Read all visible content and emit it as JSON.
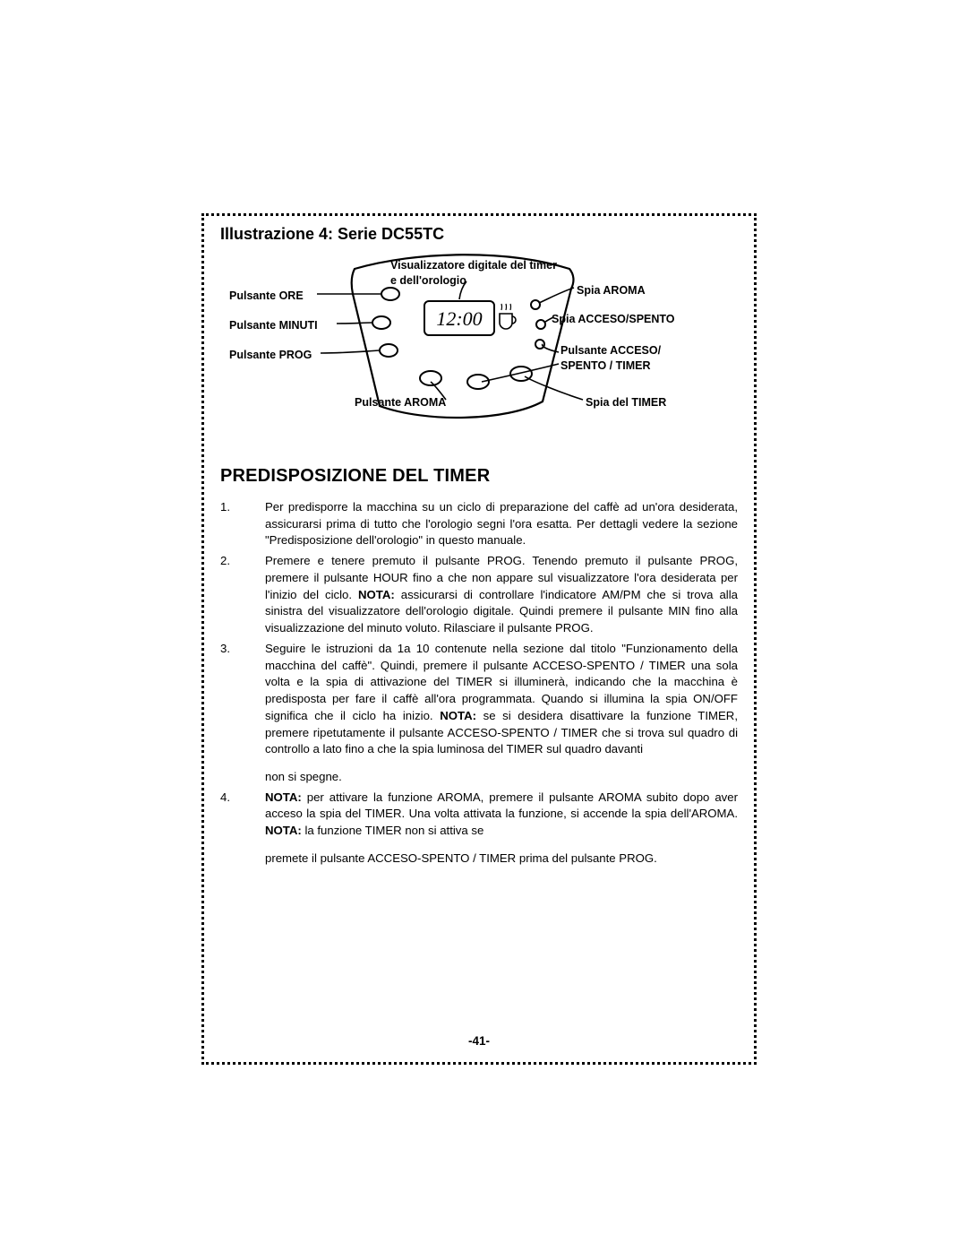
{
  "figure": {
    "title": "Illustrazione 4: Serie DC55TC",
    "labels": {
      "topCenter": "Visualizzatore digitale del timer\ne dell'orologio",
      "leftOre": "Pulsante ORE",
      "leftMinuti": "Pulsante MINUTI",
      "leftProg": "Pulsante PROG",
      "bottomAroma": "Pulsante AROMA",
      "rightSpiaAroma": "Spia AROMA",
      "rightSpiaAcceso": "Spia ACCESO/SPENTO",
      "rightPulsanteAcceso": "Pulsante ACCESO/\nSPENTO / TIMER",
      "rightSpiaTimer": "Spia del TIMER"
    },
    "display_text": "12:00",
    "colors": {
      "stroke": "#000000",
      "fill_none": "none",
      "bg": "#ffffff"
    }
  },
  "section_heading": "PREDISPOSIZIONE DEL TIMER",
  "steps": [
    {
      "n": "1.",
      "text": "Per predisporre la macchina su un ciclo di preparazione del caffè ad un'ora desiderata, assicurarsi prima di tutto che l'orologio segni l'ora esatta. Per dettagli vedere la sezione \"Predisposizione dell'orologio\" in questo manuale."
    },
    {
      "n": "2.",
      "text_parts": [
        {
          "t": "Premere e tenere premuto il pulsante PROG. Tenendo premuto il pulsante PROG, premere il pulsante HOUR fino a che non appare sul visualizzatore l'ora desiderata per l'inizio del ciclo.\n"
        },
        {
          "b": "NOTA:"
        },
        {
          "t": " assicurarsi di controllare l'indicatore AM/PM che si trova alla sinistra del visualizzatore dell'orologio digitale. Quindi premere il pulsante MIN fino alla visualizzazione del minuto voluto. Rilasciare il pulsante PROG."
        }
      ]
    },
    {
      "n": "3.",
      "text_parts": [
        {
          "t": "Seguire le istruzioni da 1a 10 contenute nella sezione dal titolo \"Funzionamento della macchina del caffè\". Quindi, premere il pulsante ACCESO-SPENTO / TIMER una sola volta e la spia di attivazione del TIMER si illuminerà, indicando che la macchina è predisposta per fare il caffè all'ora programmata. Quando si illumina la spia ON/OFF significa che il ciclo ha inizio. "
        },
        {
          "b": "NOTA:"
        },
        {
          "t": " se si desidera disattivare la funzione TIMER, premere ripetutamente il pulsante ACCESO-SPENTO / TIMER che si trova sul quadro di controllo a lato fino a che la spia luminosa del TIMER sul quadro davanti"
        }
      ]
    },
    {
      "n": "",
      "text": "non si spegne."
    },
    {
      "n": "4.",
      "text_parts": [
        {
          "b": "NOTA:"
        },
        {
          "t": " per attivare la funzione AROMA, premere il pulsante AROMA subito dopo aver acceso la spia del TIMER. Una volta attivata la funzione, si accende la spia dell'AROMA. "
        },
        {
          "b": "NOTA:"
        },
        {
          "t": " la funzione TIMER non si attiva se"
        }
      ]
    },
    {
      "n": "",
      "text": "premete il pulsante ACCESO-SPENTO / TIMER prima del pulsante PROG."
    }
  ],
  "page_number": "-41-"
}
